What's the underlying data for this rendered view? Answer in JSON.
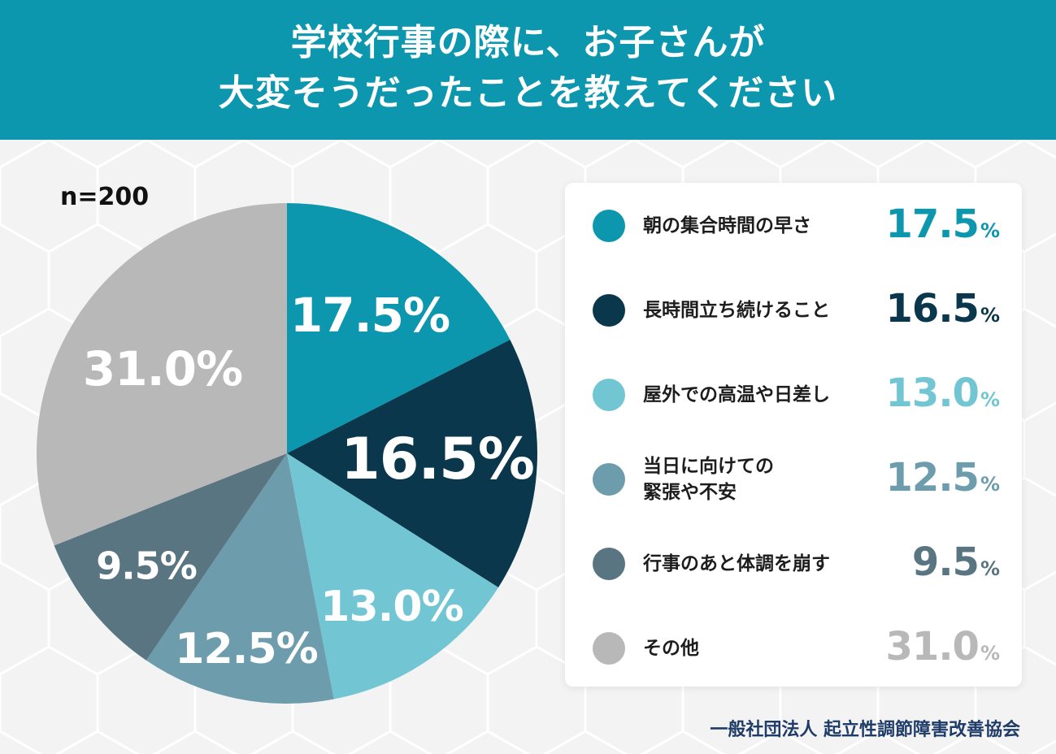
{
  "header": {
    "title_line1": "学校行事の際に、お子さんが",
    "title_line2": "大変そうだったことを教えてください"
  },
  "sample_size": "n=200",
  "footer_org": "一般社団法人 起立性調節障害改善協会",
  "chart_data": {
    "type": "pie",
    "unit": "%",
    "categories": [
      "朝の集合時間の早さ",
      "長時間立ち続けること",
      "屋外での高温や日差し",
      "当日に向けての緊張や不安",
      "行事のあと体調を崩す",
      "その他"
    ],
    "values": [
      17.5,
      16.5,
      13.0,
      12.5,
      9.5,
      31.0
    ],
    "value_labels": [
      "17.5",
      "16.5",
      "13.0",
      "12.5",
      "9.5",
      "31.0"
    ],
    "colors": [
      "#0d97ae",
      "#0b374d",
      "#72c6d3",
      "#6d9dad",
      "#587581",
      "#b8b8b8"
    ],
    "legend_placement": "right"
  },
  "legend": {
    "items": [
      {
        "label": "朝の集合時間の早さ",
        "value": "17.5",
        "unit": "%",
        "color": "#0d97ae"
      },
      {
        "label": "長時間立ち続けること",
        "value": "16.5",
        "unit": "%",
        "color": "#0b374d"
      },
      {
        "label": "屋外での高温や日差し",
        "value": "13.0",
        "unit": "%",
        "color": "#72c6d3"
      },
      {
        "label": "当日に向けての\n緊張や不安",
        "value": "12.5",
        "unit": "%",
        "color": "#6d9dad"
      },
      {
        "label": "行事のあと体調を崩す",
        "value": "9.5",
        "unit": "%",
        "color": "#587581"
      },
      {
        "label": "その他",
        "value": "31.0",
        "unit": "%",
        "color": "#b8b8b8"
      }
    ]
  }
}
